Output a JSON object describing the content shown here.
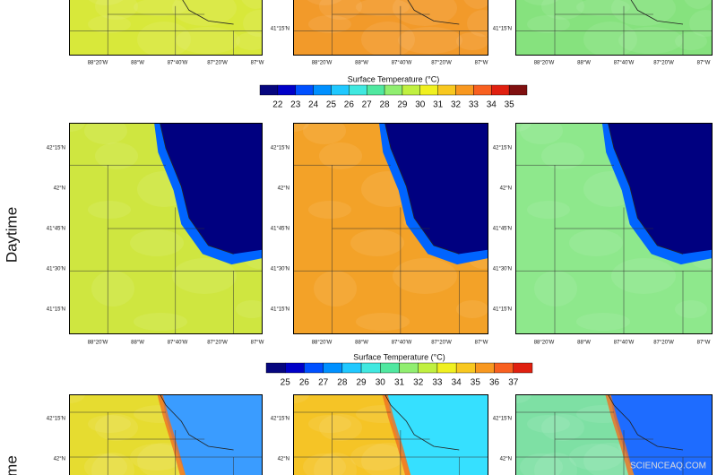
{
  "rows": [
    {
      "panels": [
        {
          "land_color": "#d8e83a",
          "lake_color": null,
          "x_labels": [
            "88°20'W",
            "88°W",
            "87°40'W",
            "87°20'W",
            "87°W"
          ],
          "y_labels": []
        },
        {
          "land_color": "#f29a2a",
          "lake_color": null,
          "x_labels": [
            "88°20'W",
            "88°W",
            "87°40'W",
            "87°20'W",
            "87°W"
          ],
          "y_labels": [
            "41°15'N"
          ]
        },
        {
          "land_color": "#86e27e",
          "lake_color": null,
          "x_labels": [
            "88°20'W",
            "88°W",
            "87°40'W",
            "87°20'W",
            "87°W"
          ],
          "y_labels": [
            "41°15'N"
          ]
        }
      ]
    },
    {
      "row_label": "Daytime",
      "panels": [
        {
          "land_color": "#cfe640",
          "lake_color": "#000080",
          "x_labels": [
            "88°20'W",
            "88°W",
            "87°40'W",
            "87°20'W",
            "87°W"
          ],
          "y_labels": [
            "42°15'N",
            "42°N",
            "41°45'N",
            "41°30'N",
            "41°15'N"
          ]
        },
        {
          "land_color": "#f3a228",
          "lake_color": "#000080",
          "x_labels": [
            "88°20'W",
            "88°W",
            "87°40'W",
            "87°20'W",
            "87°W"
          ],
          "y_labels": [
            "42°15'N",
            "42°N",
            "41°45'N",
            "41°30'N",
            "41°15'N"
          ]
        },
        {
          "land_color": "#8ee88c",
          "lake_color": "#000080",
          "x_labels": [
            "88°20'W",
            "88°W",
            "87°40'W",
            "87°20'W",
            "87°W"
          ],
          "y_labels": [
            "42°15'N",
            "42°N",
            "41°45'N",
            "41°30'N",
            "41°15'N"
          ]
        }
      ]
    },
    {
      "row_label": "me",
      "panels": [
        {
          "land_color": "#e6dc30",
          "lake_color": "#3a9cff",
          "x_labels": [],
          "y_labels": [
            "42°15'N",
            "42°N"
          ]
        },
        {
          "land_color": "#f5c426",
          "lake_color": "#36e0ff",
          "x_labels": [],
          "y_labels": [
            "42°15'N",
            "42°N"
          ]
        },
        {
          "land_color": "#7ee0a4",
          "lake_color": "#1e6cff",
          "x_labels": [],
          "y_labels": [
            "42°15'N",
            "42°N"
          ]
        }
      ]
    }
  ],
  "colorbars": [
    {
      "title": "Surface Temperature  (°C)",
      "labels": [
        "22",
        "23",
        "24",
        "25",
        "26",
        "27",
        "28",
        "29",
        "30",
        "31",
        "32",
        "33",
        "34",
        "35"
      ],
      "colors": [
        "#06067e",
        "#0000c8",
        "#0050ff",
        "#0090ff",
        "#20c8ff",
        "#40e8e0",
        "#50e8a0",
        "#90ee70",
        "#c0f040",
        "#f0f020",
        "#f8c820",
        "#f89820",
        "#f86020",
        "#e02010",
        "#801010"
      ]
    },
    {
      "title": "Surface Temperature  (°C)",
      "labels": [
        "25",
        "26",
        "27",
        "28",
        "29",
        "30",
        "31",
        "32",
        "33",
        "34",
        "35",
        "36",
        "37"
      ],
      "colors": [
        "#06067e",
        "#0000c8",
        "#0050ff",
        "#0090ff",
        "#20c8ff",
        "#40e8e0",
        "#50e8a0",
        "#90ee70",
        "#c0f040",
        "#f0f020",
        "#f8c820",
        "#f89820",
        "#f86020",
        "#e02010"
      ]
    }
  ],
  "watermark": "SCIENCEAQ.COM"
}
